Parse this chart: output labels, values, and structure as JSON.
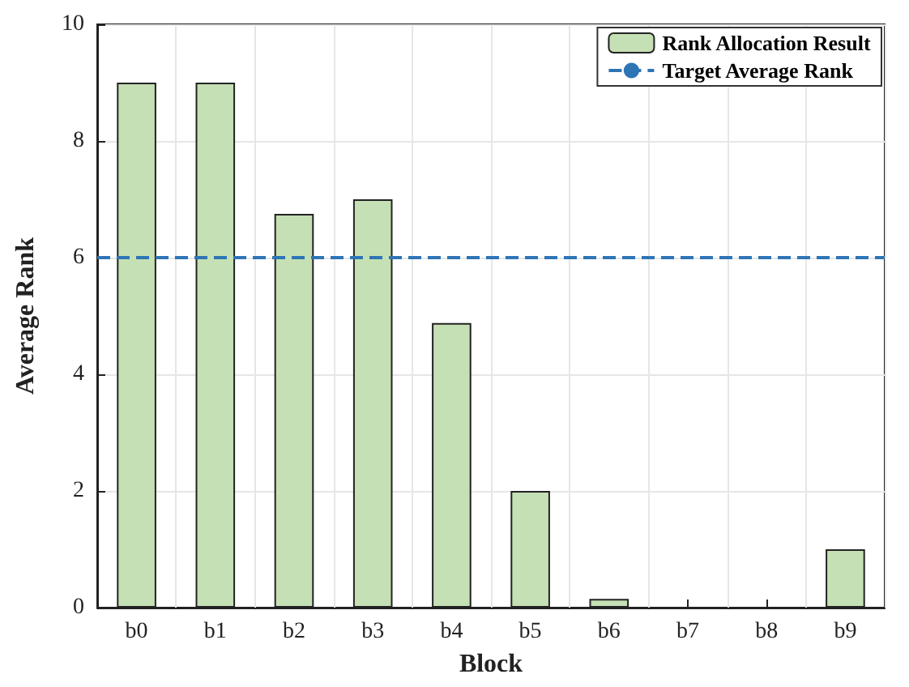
{
  "chart_data": {
    "type": "bar",
    "xlabel": "Block",
    "ylabel": "Average Rank",
    "categories": [
      "b0",
      "b1",
      "b2",
      "b3",
      "b4",
      "b5",
      "b6",
      "b7",
      "b8",
      "b9"
    ],
    "series": [
      {
        "name": "Rank Allocation Result",
        "color": "#c5e0b4",
        "values": [
          9,
          9,
          6.75,
          7,
          4.88,
          2,
          0.15,
          0,
          0,
          1
        ]
      }
    ],
    "ylim": [
      0,
      10
    ],
    "yticks": [
      0,
      2,
      4,
      6,
      8,
      10
    ],
    "ref_lines": [
      {
        "axis": "y",
        "value": 6,
        "label": "Target Average Rank",
        "color": "#2e75b6",
        "line_style": "dashed"
      }
    ],
    "grid": true,
    "legend": "top right"
  }
}
